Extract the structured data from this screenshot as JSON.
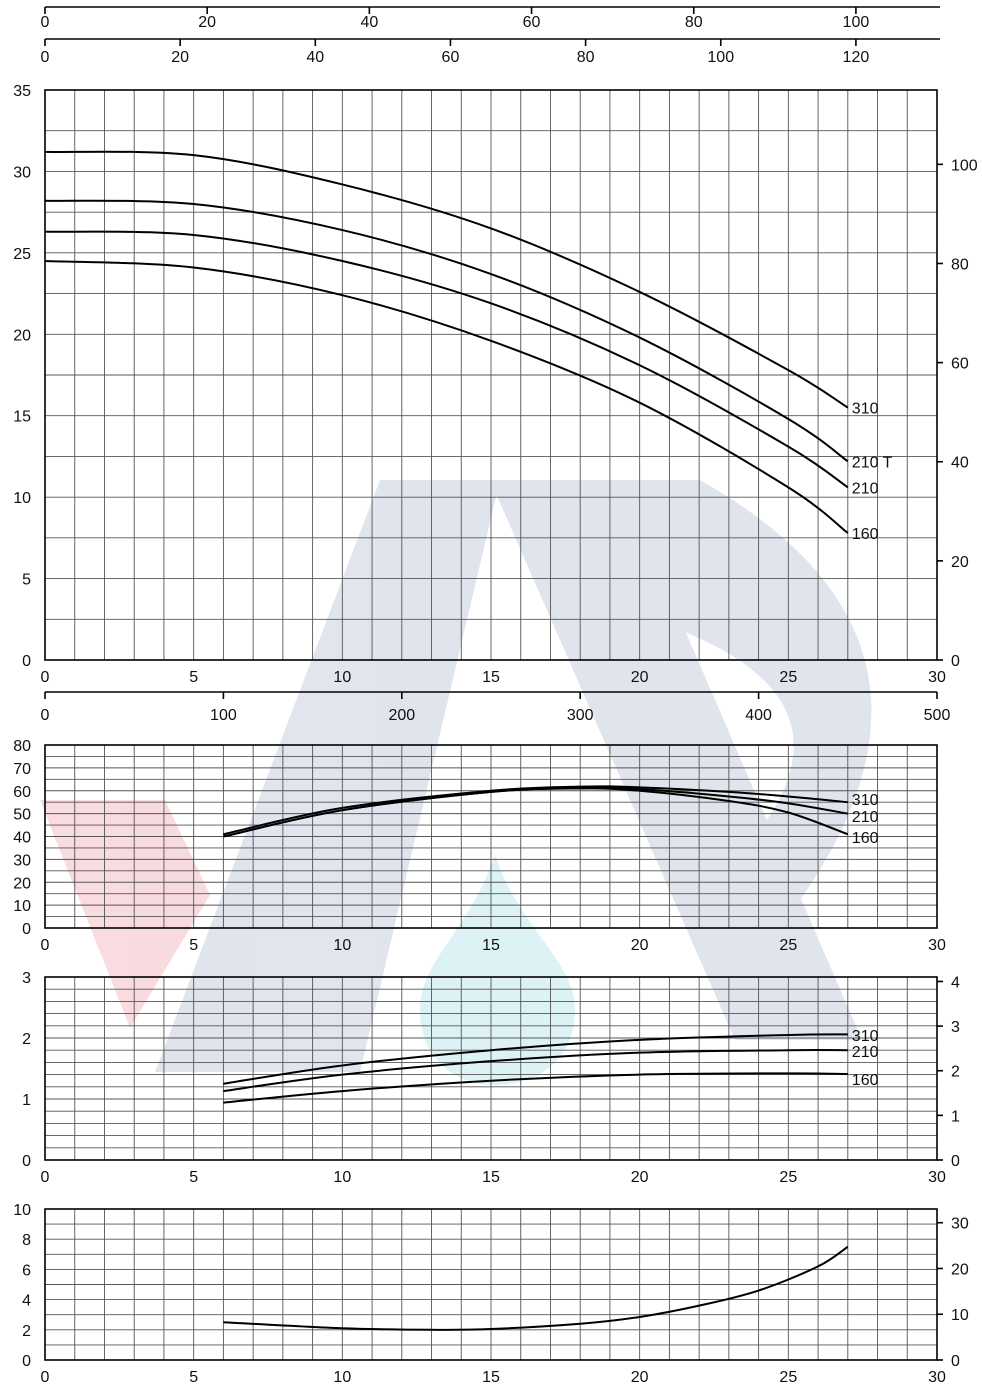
{
  "chart_data": [
    {
      "type": "line",
      "id": "head",
      "x": {
        "range": [
          0,
          30
        ],
        "ticks": [
          0,
          5,
          10,
          15,
          20,
          25,
          30
        ]
      },
      "ylim": [
        0,
        35
      ],
      "y_ticks": [
        0,
        5,
        10,
        15,
        20,
        25,
        30,
        35
      ],
      "y_right": {
        "range": [
          0,
          115
        ],
        "ticks": [
          0,
          20,
          40,
          60,
          80,
          "100"
        ]
      },
      "top_axes": [
        {
          "range": [
            0,
            110
          ],
          "ticks": [
            0,
            20,
            40,
            60,
            80,
            100
          ]
        },
        {
          "range": [
            0,
            132
          ],
          "ticks": [
            0,
            20,
            40,
            60,
            80,
            100,
            120
          ]
        }
      ],
      "grid": true,
      "series": [
        {
          "name": "310",
          "x": [
            0,
            5,
            10,
            15,
            20,
            25,
            27
          ],
          "y": [
            31.2,
            31.0,
            29.2,
            26.5,
            22.6,
            17.8,
            15.5
          ]
        },
        {
          "name": "210 T",
          "x": [
            0,
            5,
            10,
            15,
            20,
            25,
            27
          ],
          "y": [
            28.2,
            28.0,
            26.4,
            23.7,
            19.8,
            14.8,
            12.2
          ]
        },
        {
          "name": "210",
          "x": [
            0,
            5,
            10,
            15,
            20,
            25,
            27
          ],
          "y": [
            26.3,
            26.1,
            24.5,
            21.9,
            18.1,
            13.1,
            10.6
          ]
        },
        {
          "name": "160",
          "x": [
            0,
            5,
            10,
            15,
            20,
            25,
            27
          ],
          "y": [
            24.5,
            24.1,
            22.4,
            19.6,
            15.8,
            10.6,
            7.8
          ]
        }
      ]
    },
    {
      "type": "line",
      "id": "efficiency",
      "top_axis": {
        "range": [
          0,
          500
        ],
        "ticks": [
          0,
          100,
          200,
          300,
          400,
          500
        ]
      },
      "x": {
        "range": [
          0,
          30
        ],
        "ticks": [
          0,
          5,
          10,
          15,
          20,
          25,
          30
        ]
      },
      "ylim": [
        0,
        80
      ],
      "y_ticks": [
        0,
        10,
        20,
        30,
        40,
        50,
        60,
        70,
        80
      ],
      "grid": true,
      "series": [
        {
          "name": "310",
          "x": [
            6,
            10,
            15,
            18,
            20,
            23,
            25,
            27
          ],
          "y": [
            41,
            52.5,
            60,
            61.8,
            61.5,
            59.5,
            57.5,
            55
          ]
        },
        {
          "name": "210",
          "x": [
            6,
            10,
            15,
            18,
            20,
            23,
            25,
            27
          ],
          "y": [
            40,
            51.5,
            59.5,
            61.2,
            60.7,
            57.5,
            54.5,
            50
          ]
        },
        {
          "name": "160",
          "x": [
            6,
            10,
            15,
            18,
            20,
            23,
            25,
            27
          ],
          "y": [
            40,
            51.5,
            59.5,
            61,
            60,
            55.5,
            50.5,
            41
          ]
        }
      ]
    },
    {
      "type": "line",
      "id": "power",
      "x": {
        "range": [
          0,
          30
        ],
        "ticks": [
          0,
          5,
          10,
          15,
          20,
          25,
          30
        ]
      },
      "ylim": [
        0,
        3
      ],
      "y_ticks": [
        0,
        1,
        2,
        3
      ],
      "y_right": {
        "range": [
          0,
          4.1
        ],
        "ticks": [
          0,
          1,
          2,
          3,
          4
        ]
      },
      "grid": true,
      "series": [
        {
          "name": "310",
          "x": [
            6,
            10,
            15,
            20,
            25,
            27
          ],
          "y": [
            1.25,
            1.55,
            1.8,
            1.97,
            2.05,
            2.06
          ]
        },
        {
          "name": "210",
          "x": [
            6,
            10,
            15,
            20,
            25,
            27
          ],
          "y": [
            1.13,
            1.4,
            1.62,
            1.76,
            1.8,
            1.8
          ]
        },
        {
          "name": "160",
          "x": [
            6,
            10,
            15,
            20,
            25,
            27
          ],
          "y": [
            0.94,
            1.13,
            1.3,
            1.4,
            1.42,
            1.41
          ]
        }
      ]
    },
    {
      "type": "line",
      "id": "npsh",
      "x": {
        "range": [
          0,
          30
        ],
        "ticks": [
          0,
          5,
          10,
          15,
          20,
          25,
          30
        ]
      },
      "ylim": [
        0,
        10
      ],
      "y_ticks": [
        0,
        2,
        4,
        6,
        8,
        10
      ],
      "y_right": {
        "range": [
          0,
          33
        ],
        "ticks": [
          0,
          10,
          20,
          30
        ]
      },
      "grid": true,
      "series": [
        {
          "name": "",
          "x": [
            6,
            10,
            13,
            15,
            18,
            20,
            22,
            24,
            26,
            27
          ],
          "y": [
            2.5,
            2.1,
            2.0,
            2.05,
            2.4,
            2.85,
            3.6,
            4.6,
            6.2,
            7.5
          ]
        }
      ]
    }
  ]
}
